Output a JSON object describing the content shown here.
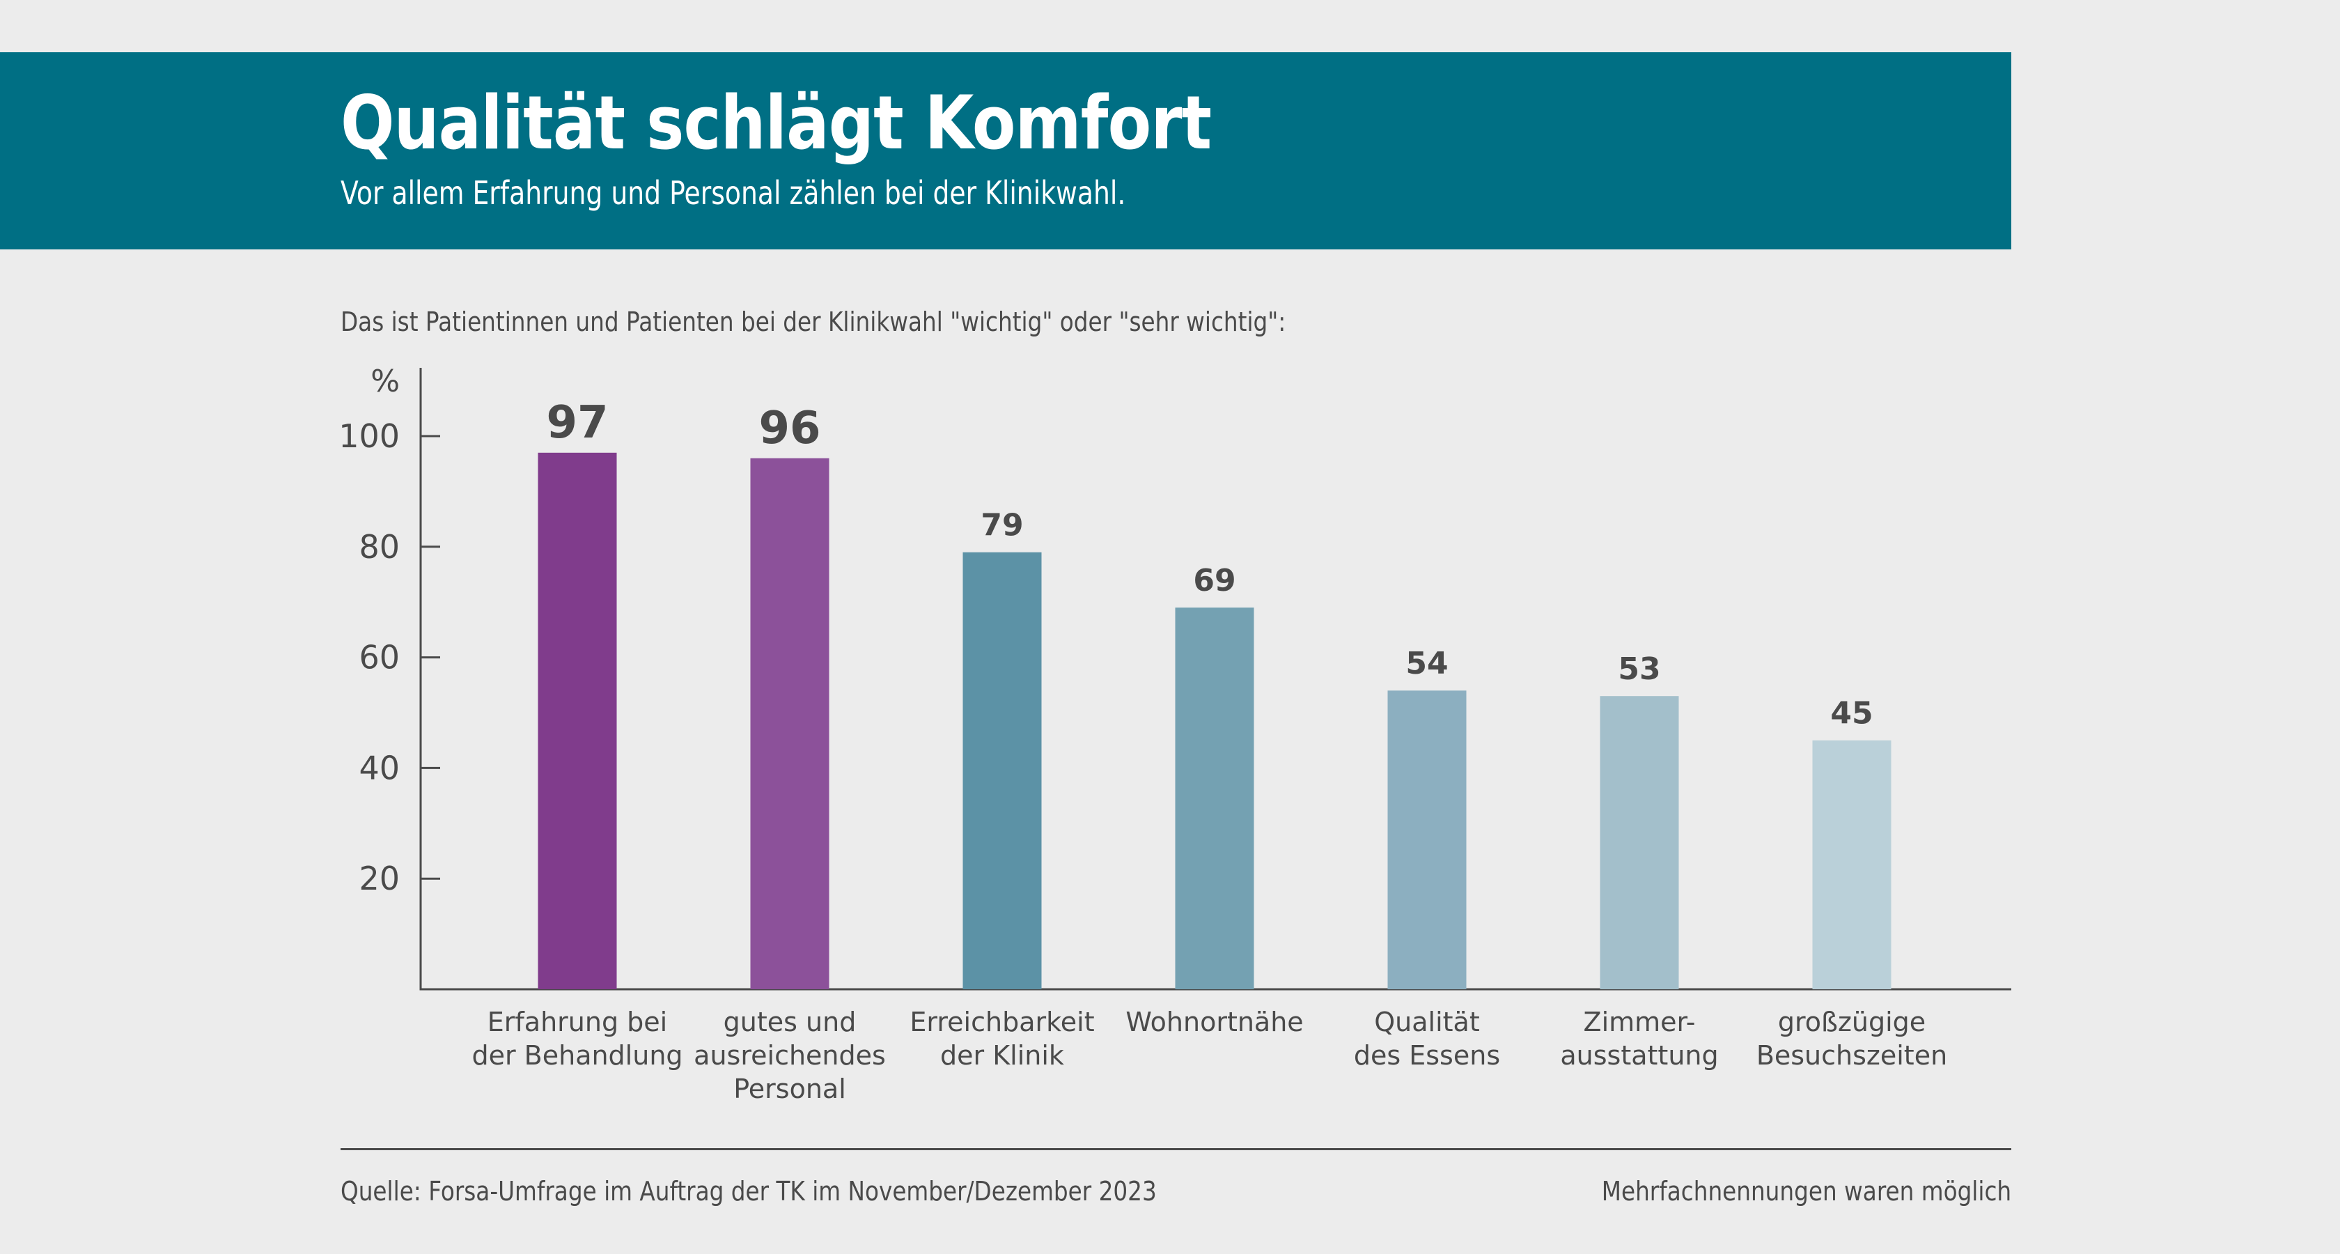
{
  "header": {
    "title": "Qualität schlägt Komfort",
    "subtitle": "Vor allem Erfahrung und Personal zählen bei der Klinikwahl."
  },
  "intro": "Das ist Patientinnen und Patienten bei der Klinikwahl \"wichtig\" oder \"sehr wichtig\":",
  "footer": {
    "source": "Quelle: Forsa-Umfrage im Auftrag der TK im November/Dezember 2023",
    "note": "Mehrfachnennungen waren möglich"
  },
  "colors": {
    "header_bg": "#006f84",
    "background": "#ececec",
    "text": "#4a4a4a"
  },
  "chart_data": {
    "type": "bar",
    "title": "Qualität schlägt Komfort",
    "subtitle": "Vor allem Erfahrung und Personal zählen bei der Klinikwahl.",
    "xlabel": "",
    "ylabel": "%",
    "ylim": [
      0,
      100
    ],
    "yticks": [
      20,
      40,
      60,
      80,
      100
    ],
    "grid": false,
    "legend": "none",
    "categories": [
      [
        "Erfahrung bei",
        "der Behandlung"
      ],
      [
        "gutes und",
        "ausreichendes",
        "Personal"
      ],
      [
        "Erreichbarkeit",
        "der Klinik"
      ],
      [
        "Wohnortnähe"
      ],
      [
        "Qualität",
        "des Essens"
      ],
      [
        "Zimmer-",
        "ausstattung"
      ],
      [
        "großzügige",
        "Besuchszeiten"
      ]
    ],
    "values": [
      97,
      96,
      79,
      69,
      54,
      53,
      45
    ],
    "bar_colors": [
      "#803c8c",
      "#8c519a",
      "#5c92a6",
      "#74a1b2",
      "#8cafc0",
      "#a3bfcb",
      "#bad0d9"
    ],
    "label_emphasis": [
      true,
      true,
      false,
      false,
      false,
      false,
      false
    ]
  }
}
